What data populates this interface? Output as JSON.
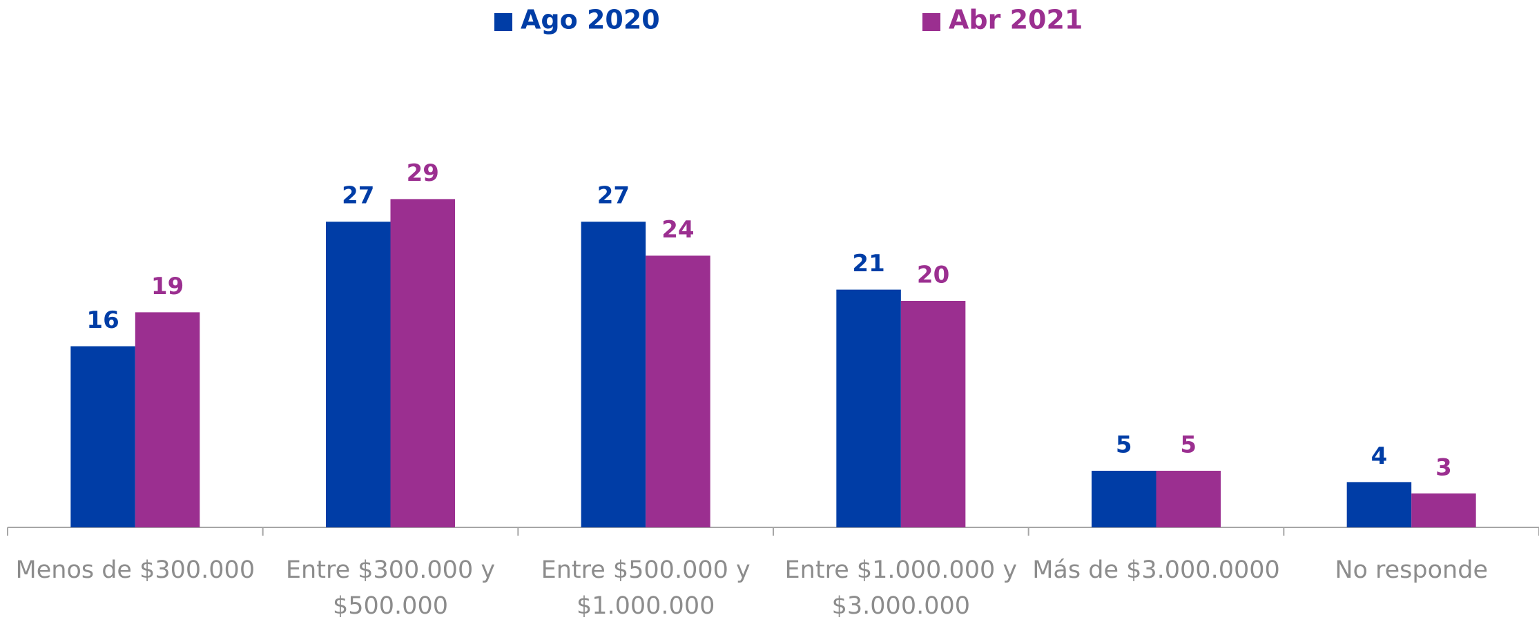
{
  "chart_data": {
    "type": "bar",
    "categories": [
      "Menos de $300.000",
      "Entre $300.000 y $500.000",
      "Entre $500.000 y $1.000.000",
      "Entre $1.000.000 y $3.000.000",
      "Más de $3.000.0000",
      "No responde"
    ],
    "series": [
      {
        "name": "Ago 2020",
        "color": "#003da6",
        "values": [
          16,
          27,
          27,
          21,
          5,
          4
        ]
      },
      {
        "name": "Abr 2021",
        "color": "#9b2f90",
        "values": [
          19,
          29,
          24,
          20,
          5,
          3
        ]
      }
    ],
    "legend": "top"
  }
}
